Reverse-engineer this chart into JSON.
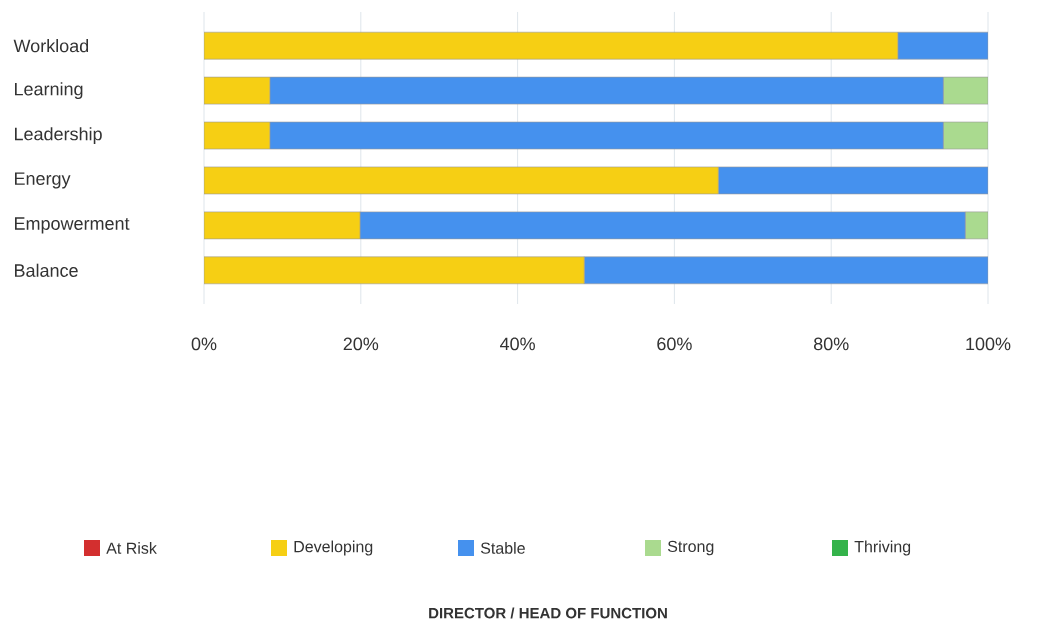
{
  "chart_data": {
    "type": "bar",
    "orientation": "horizontal",
    "stacked": true,
    "title": "DIRECTOR / HEAD OF FUNCTION",
    "categories": [
      "Workload",
      "Learning",
      "Leadership",
      "Energy",
      "Empowerment",
      "Balance"
    ],
    "series": [
      {
        "name": "At Risk",
        "color": "#d32f2f",
        "values": [
          0,
          0,
          0,
          0,
          0,
          0
        ]
      },
      {
        "name": "Developing",
        "color": "#f6cf14",
        "values": [
          88.5,
          8.4,
          8.4,
          65.6,
          19.9,
          48.5
        ]
      },
      {
        "name": "Stable",
        "color": "#4591ee",
        "values": [
          11.5,
          85.9,
          85.9,
          34.4,
          77.2,
          51.5
        ]
      },
      {
        "name": "Strong",
        "color": "#aada8f",
        "values": [
          0,
          5.7,
          5.7,
          0,
          2.9,
          0
        ]
      },
      {
        "name": "Thriving",
        "color": "#34b34a",
        "values": [
          0,
          0,
          0,
          0,
          0,
          0
        ]
      }
    ],
    "xlim": [
      0,
      100
    ],
    "xticks": [
      {
        "value": 0,
        "label": "0%"
      },
      {
        "value": 20,
        "label": "20%"
      },
      {
        "value": 40,
        "label": "40%"
      },
      {
        "value": 60,
        "label": "60%"
      },
      {
        "value": 80,
        "label": "80%"
      },
      {
        "value": 100,
        "label": "100%"
      }
    ],
    "grid": "x",
    "legend": "bottom"
  }
}
